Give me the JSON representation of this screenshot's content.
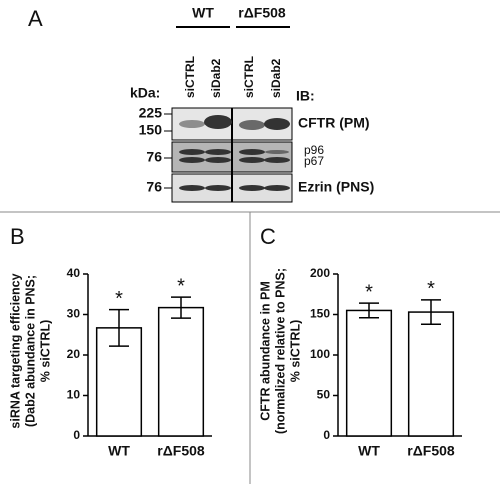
{
  "panel_a": {
    "letter": "A",
    "groups": [
      "WT",
      "rΔF508"
    ],
    "lanes": [
      "siCTRL",
      "siDab2",
      "siCTRL",
      "siDab2"
    ],
    "kda_label": "kDa:",
    "ib_label": "IB:",
    "markers": [
      "225",
      "150",
      "76",
      "76"
    ],
    "blots": [
      "CFTR (PM)",
      "Ezrin (PNS)"
    ],
    "bands": [
      "p96",
      "p67"
    ]
  },
  "chart_data": [
    {
      "type": "bar",
      "panel": "B",
      "ylabel": [
        "siRNA targeting efficiency",
        "(Dab2 abundance  in PNS;",
        "% siCTRL)"
      ],
      "categories": [
        "WT",
        "rΔF508"
      ],
      "values": [
        26.7,
        31.7
      ],
      "errors": [
        4.5,
        2.6
      ],
      "annotations": [
        "*",
        "*"
      ],
      "color": "#ffffff",
      "ylim": [
        0,
        40
      ],
      "yticks": [
        0,
        10,
        20,
        30,
        40
      ]
    },
    {
      "type": "bar",
      "panel": "C",
      "ylabel": [
        "CFTR abundance in PM",
        "(normalized relative to PNS;",
        "% siCTRL)"
      ],
      "categories": [
        "WT",
        "rΔF508"
      ],
      "values": [
        155,
        153
      ],
      "errors": [
        9,
        15
      ],
      "annotations": [
        "*",
        "*"
      ],
      "color": "#ffffff",
      "ylim": [
        0,
        200
      ],
      "yticks": [
        0,
        50,
        100,
        150,
        200
      ]
    }
  ]
}
